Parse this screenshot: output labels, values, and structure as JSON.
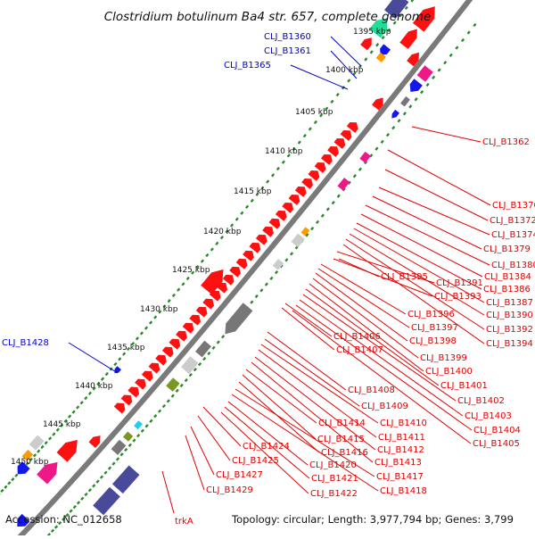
{
  "header": {
    "title": "Clostridium botulinum Ba4 str. 657, complete genome"
  },
  "footer": {
    "accession": "Accession: NC_012658",
    "topology": "Topology: circular; Length: 3,977,794 bp; Genes: 3,799",
    "trk_label": "trkA"
  },
  "colors": {
    "backbone": "#7a7a7a",
    "tick": "#2a8a2a",
    "gene_label_red": "#e00000",
    "gene_label_blue": "#0000cc",
    "feature_red": "#ff1010",
    "feature_magenta": "#ee1888",
    "feature_slate": "#4a4a9a",
    "feature_blue": "#1515ee",
    "feature_mint": "#22dd99",
    "feature_grey": "#777777",
    "feature_light": "#cccccc",
    "feature_olive": "#779922",
    "feature_orange": "#ff9900",
    "feature_cyan": "#22ccee"
  },
  "scale_marks": [
    "1395 kbp",
    "1400 kbp",
    "1405 kbp",
    "1410 kbp",
    "1415 kbp",
    "1420 kbp",
    "1425 kbp",
    "1430 kbp",
    "1435 kbp",
    "1440 kbp",
    "1445 kbp",
    "1450 kbp"
  ],
  "gene_labels_blue": [
    "CLJ_B1360",
    "CLJ_B1361",
    "CLJ_B1365",
    "CLJ_B1428"
  ],
  "gene_labels_red": [
    "CLJ_B1362",
    "CLJ_B1370",
    "CLJ_B1372",
    "CLJ_B1374",
    "CLJ_B1379",
    "CLJ_B1380",
    "CLJ_B1384",
    "CLJ_B1386",
    "CLJ_B1387",
    "CLJ_B1390",
    "CLJ_B1392",
    "CLJ_B1394",
    "CLJ_B1395",
    "CLJ_B1391",
    "CLJ_B1393",
    "CLJ_B1396",
    "CLJ_B1397",
    "CLJ_B1398",
    "CLJ_B1406",
    "CLJ_B1407",
    "CLJ_B1399",
    "CLJ_B1400",
    "CLJ_B1401",
    "CLJ_B1402",
    "CLJ_B1403",
    "CLJ_B1404",
    "CLJ_B1405",
    "CLJ_B1408",
    "CLJ_B1409",
    "CLJ_B1410",
    "CLJ_B1411",
    "CLJ_B1412",
    "CLJ_B1413",
    "CLJ_B1414",
    "CLJ_B1415",
    "CLJ_B1416",
    "CLJ_B1417",
    "CLJ_B1418",
    "CLJ_B1420",
    "CLJ_B1421",
    "CLJ_B1422",
    "CLJ_B1424",
    "CLJ_B1425",
    "CLJ_B1427",
    "CLJ_B1429"
  ]
}
